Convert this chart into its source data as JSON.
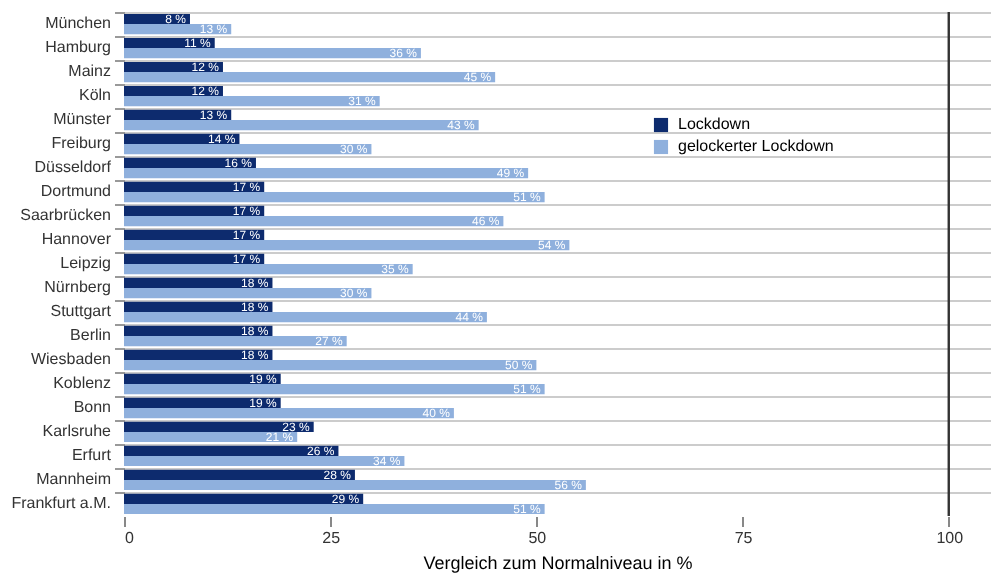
{
  "chart_data": {
    "type": "bar",
    "orientation": "horizontal",
    "xlabel": "Vergleich zum Normalniveau in %",
    "categories": [
      "München",
      "Hamburg",
      "Mainz",
      "Köln",
      "Münster",
      "Freiburg",
      "Düsseldorf",
      "Dortmund",
      "Saarbrücken",
      "Hannover",
      "Leipzig",
      "Nürnberg",
      "Stuttgart",
      "Berlin",
      "Wiesbaden",
      "Koblenz",
      "Bonn",
      "Karlsruhe",
      "Erfurt",
      "Mannheim",
      "Frankfurt a.M."
    ],
    "series": [
      {
        "name": "Lockdown",
        "color": "#0d2b6e",
        "values": [
          8,
          11,
          12,
          12,
          13,
          14,
          16,
          17,
          17,
          17,
          17,
          18,
          18,
          18,
          18,
          19,
          19,
          23,
          26,
          28,
          29
        ],
        "value_labels": [
          "8 %",
          "11 %",
          "12 %",
          "12 %",
          "13 %",
          "14 %",
          "16 %",
          "17 %",
          "17 %",
          "17 %",
          "17 %",
          "18 %",
          "18 %",
          "18 %",
          "18 %",
          "19 %",
          "19 %",
          "23 %",
          "26 %",
          "28 %",
          "29 %"
        ]
      },
      {
        "name": "gelockerter Lockdown",
        "color": "#8fb0dd",
        "values": [
          13,
          36,
          45,
          31,
          43,
          30,
          49,
          51,
          46,
          54,
          35,
          30,
          44,
          27,
          50,
          51,
          40,
          21,
          34,
          56,
          51
        ],
        "value_labels": [
          "13 %",
          "36 %",
          "45 %",
          "31 %",
          "43 %",
          "30 %",
          "49 %",
          "51 %",
          "46 %",
          "54 %",
          "35 %",
          "30 %",
          "44 %",
          "27 %",
          "50 %",
          "51 %",
          "40 %",
          "21 %",
          "34 %",
          "56 %",
          "51 %"
        ]
      }
    ],
    "xlim": [
      0,
      105
    ],
    "xticks": [
      0,
      25,
      50,
      75,
      100
    ],
    "ref_lines": [
      {
        "axis": "x",
        "value": 100,
        "color": "#333333"
      }
    ],
    "grid": "y",
    "legend": "right"
  }
}
